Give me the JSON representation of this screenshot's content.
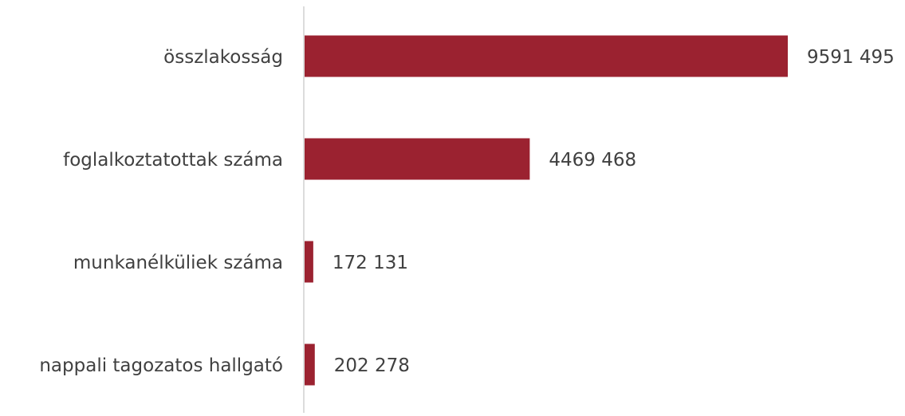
{
  "chart_data": {
    "type": "hbar",
    "categories": [
      "összlakosság",
      "foglalkoztatottak száma",
      "munkanélküliek száma",
      "nappali tagozatos hallgató"
    ],
    "values": [
      9591495,
      4469468,
      172131,
      202278
    ],
    "value_labels": [
      "9591 495",
      "4469 468",
      "172 131",
      "202 278"
    ],
    "color": "#9b2230"
  }
}
